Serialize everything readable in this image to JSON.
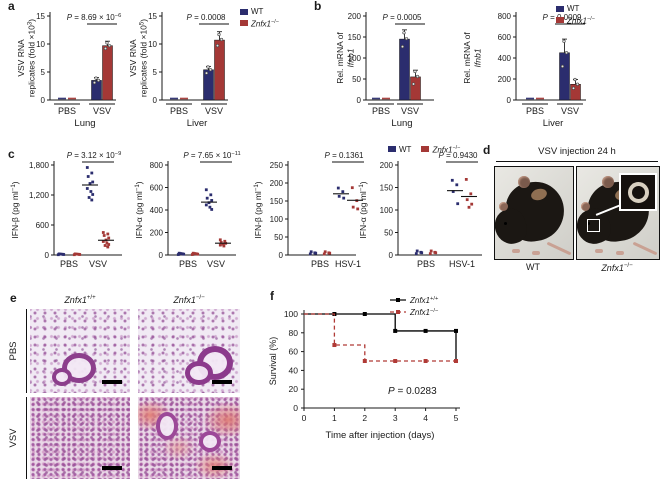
{
  "colors": {
    "wt": "#2b2d6e",
    "ko": "#a43836",
    "survival_ko": "#b03a36",
    "text": "#1a1a1a"
  },
  "panels": {
    "a": "a",
    "b": "b",
    "c": "c",
    "d": "d",
    "e": "e",
    "f": "f"
  },
  "legends": {
    "a": [
      {
        "label": "WT"
      },
      {
        "label": "*Znfx1*^−/−^"
      }
    ],
    "b": [
      {
        "label": "WT"
      },
      {
        "label": "*Znfx1*^−/−^"
      }
    ],
    "c": [
      {
        "label": "WT"
      },
      {
        "label": "*Znfx1*^−/−^"
      }
    ]
  },
  "panel_d": {
    "title": "VSV injection 24 h",
    "left_label": "WT",
    "right_label": "*Znfx1*^−/−^"
  },
  "panel_e": {
    "col_labels": [
      "*Znfx1*^+/+^",
      "*Znfx1*^−/−^"
    ],
    "row_labels": [
      "PBS",
      "VSV"
    ]
  },
  "chart_data": [
    {
      "id": "a1",
      "type": "bar",
      "ylabel": "VSV RNA|replicates (fold ×10^3^)",
      "pvalue": "*P* = 8.69 × 10^−6^",
      "ymax": 15,
      "yticks": [
        "0",
        "5",
        "10",
        "15"
      ],
      "groups": [
        "PBS",
        "VSV"
      ],
      "tissue": "Lung",
      "series": [
        {
          "name": "WT",
          "value": 3.5,
          "err": 0.5,
          "points": [
            3.1,
            3.5,
            3.9
          ]
        },
        {
          "name": "*Znfx1*^−/−^",
          "value": 9.7,
          "err": 0.8,
          "points": [
            9.2,
            9.7,
            10.2
          ]
        }
      ]
    },
    {
      "id": "a2",
      "type": "bar",
      "ylabel": "VSV RNA|replicates (fold ×10^5^)",
      "pvalue": "*P* = 0.0008",
      "ymax": 15,
      "yticks": [
        "0",
        "5",
        "10",
        "15"
      ],
      "groups": [
        "PBS",
        "VSV"
      ],
      "tissue": "Liver",
      "series": [
        {
          "name": "WT",
          "value": 5.4,
          "err": 0.6,
          "points": [
            4.8,
            5.4,
            5.9
          ]
        },
        {
          "name": "*Znfx1*^−/−^",
          "value": 10.7,
          "err": 1.5,
          "points": [
            9.7,
            10.8,
            11.7
          ]
        }
      ]
    },
    {
      "id": "b1",
      "type": "bar",
      "ylabel": "Rel. mRNA of|*Ifnb1*",
      "pvalue": "*P* = 0.0005",
      "ymax": 200,
      "yticks": [
        "0",
        "50",
        "100",
        "150",
        "200"
      ],
      "groups": [
        "PBS",
        "VSV"
      ],
      "tissue": "Lung",
      "series": [
        {
          "name": "WT",
          "value": 145,
          "err": 22,
          "points": [
            127,
            146,
            160
          ]
        },
        {
          "name": "*Znfx1*^−/−^",
          "value": 55,
          "err": 16,
          "points": [
            38,
            56,
            68
          ]
        }
      ]
    },
    {
      "id": "b2",
      "type": "bar",
      "ylabel": "Rel. mRNA of|*Ifnb1*",
      "pvalue": "*P* = 0.0009",
      "ymax": 800,
      "yticks": [
        "0",
        "200",
        "400",
        "600",
        "800"
      ],
      "groups": [
        "PBS",
        "VSV"
      ],
      "tissue": "Liver",
      "series": [
        {
          "name": "WT",
          "value": 450,
          "err": 130,
          "points": [
            320,
            450,
            560
          ]
        },
        {
          "name": "*Znfx1*^−/−^",
          "value": 150,
          "err": 45,
          "points": [
            112,
            150,
            195
          ]
        }
      ]
    },
    {
      "id": "c1",
      "type": "scatter",
      "ylabel": "IFN-β (pg ml^−1^)",
      "pvalue": "*P* = 3.12 × 10^−9^",
      "ymax": 1800,
      "yticks": [
        "0",
        "600",
        "1,200",
        "1,800"
      ],
      "groups": [
        "PBS",
        "VSV"
      ],
      "points": {
        "pbs_wt": [
          6,
          14,
          22,
          10,
          18
        ],
        "pbs_ko": [
          6,
          14,
          22,
          10,
          18
        ],
        "wt": [
          1750,
          1640,
          1570,
          1460,
          1430,
          1330,
          1270,
          1210,
          1150,
          1100
        ],
        "ko": [
          450,
          420,
          390,
          340,
          300,
          270,
          240,
          210,
          190,
          160
        ]
      },
      "means": {
        "wt": 1400,
        "ko": 295
      }
    },
    {
      "id": "c2",
      "type": "scatter",
      "ylabel": "IFN-α (pg ml^−1^)",
      "pvalue": "*P* = 7.65 × 10^−11^",
      "ymax": 800,
      "yticks": [
        "0",
        "200",
        "400",
        "600",
        "800"
      ],
      "groups": [
        "PBS",
        "VSV"
      ],
      "points": {
        "pbs_wt": [
          4,
          10,
          16,
          7,
          13
        ],
        "pbs_ko": [
          4,
          10,
          16,
          7,
          13
        ],
        "wt": [
          580,
          535,
          505,
          485,
          465,
          445,
          425,
          405
        ],
        "ko": [
          135,
          122,
          112,
          104,
          96,
          88,
          80
        ]
      },
      "means": {
        "wt": 470,
        "ko": 105
      }
    },
    {
      "id": "c3",
      "type": "scatter",
      "ylabel": "IFN-β (pg ml^−1^)",
      "pvalue": "*P* = 0.1361",
      "ymax": 250,
      "yticks": [
        "0",
        "50",
        "100",
        "150",
        "200",
        "250"
      ],
      "groups": [
        "PBS",
        "HSV-1"
      ],
      "points": {
        "pbs_wt": [
          3,
          6,
          9,
          5
        ],
        "pbs_ko": [
          3,
          6,
          9,
          5
        ],
        "wt": [
          186,
          176,
          163,
          158
        ],
        "ko": [
          187,
          151,
          133,
          128
        ]
      },
      "means": {
        "wt": 170,
        "ko": 152
      }
    },
    {
      "id": "c4",
      "type": "scatter",
      "ylabel": "IFN-α (pg ml^−1^)",
      "pvalue": "*P* = 0.9430",
      "ymax": 200,
      "yticks": [
        "0",
        "50",
        "100",
        "150",
        "200"
      ],
      "groups": [
        "PBS",
        "HSV-1"
      ],
      "points": {
        "pbs_wt": [
          3,
          6,
          9,
          5
        ],
        "pbs_ko": [
          3,
          6,
          9,
          5
        ],
        "wt": [
          166,
          156,
          141,
          114
        ],
        "ko": [
          168,
          136,
          123,
          113,
          106
        ]
      },
      "means": {
        "wt": 143,
        "ko": 130
      }
    },
    {
      "id": "f",
      "type": "survival",
      "ylabel": "Survival (%)",
      "xlabel": "Time after injection (days)",
      "pvalue": "*P* = 0.0283",
      "ymax": 100,
      "yticks": [
        "0",
        "20",
        "40",
        "60",
        "80",
        "100"
      ],
      "xticks": [
        "0",
        "1",
        "2",
        "3",
        "4",
        "5"
      ],
      "xmax": 5,
      "series": [
        {
          "name": "*Znfx1*^+/+^",
          "color": "#000000",
          "dashed": false,
          "steps": [
            [
              0,
              100
            ],
            [
              3,
              100
            ],
            [
              3,
              82
            ],
            [
              5,
              82
            ],
            [
              5,
              50
            ]
          ],
          "markers": [
            [
              1,
              100
            ],
            [
              2,
              100
            ],
            [
              3,
              82
            ],
            [
              4,
              82
            ],
            [
              5,
              82
            ]
          ]
        },
        {
          "name": "*Znfx1*^−/−^",
          "color": "#b03a36",
          "dashed": true,
          "steps": [
            [
              0,
              100
            ],
            [
              1,
              100
            ],
            [
              1,
              67
            ],
            [
              2,
              67
            ],
            [
              2,
              50
            ],
            [
              5,
              50
            ]
          ],
          "markers": [
            [
              1,
              67
            ],
            [
              2,
              50
            ],
            [
              3,
              50
            ],
            [
              4,
              50
            ],
            [
              5,
              50
            ]
          ]
        }
      ]
    }
  ]
}
